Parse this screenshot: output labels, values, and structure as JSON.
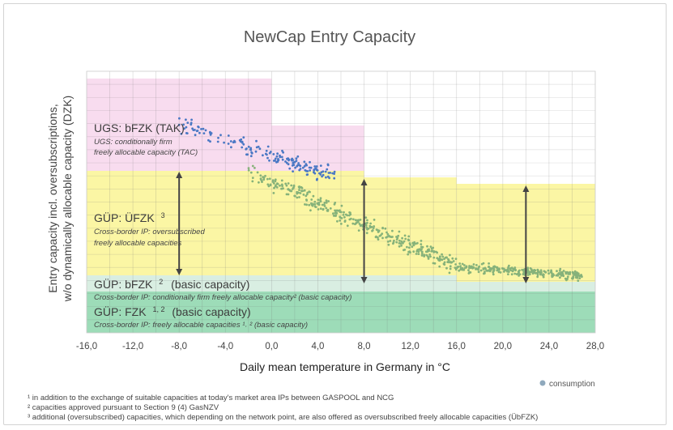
{
  "chart_data": {
    "type": "scatter",
    "title": "NewCap Entry Capacity",
    "xlabel": "Daily mean temperature in Germany in  °C",
    "ylabel_lines": [
      "Entry capacity incl. oversubscriptions,",
      "w/o dynamically allocable capacity (DZK)"
    ],
    "xlim": [
      -16,
      28
    ],
    "x_ticks": [
      "-16,0",
      "-12,0",
      "-8,0",
      "-4,0",
      "0,0",
      "4,0",
      "8,0",
      "12,0",
      "16,0",
      "20,0",
      "24,0",
      "28,0"
    ],
    "grid": true,
    "legend": {
      "position": "bottom-right",
      "entries": [
        {
          "label": "consumption",
          "color": "#8fa9bd"
        }
      ]
    },
    "zones": [
      {
        "title": "UGS: bFZK (TAK)",
        "sup": "",
        "sub_lines": [
          "UGS: conditionally firm",
          "freely allocable capacity (TAC)"
        ],
        "color": "#f8dcef"
      },
      {
        "title": "GÜP: ÜFZK",
        "sup": "3",
        "sub_lines": [
          "Cross-border IP: oversubscribed",
          "freely allocable capacities"
        ],
        "color": "#fbf6a4"
      },
      {
        "title": "GÜP: bFZK",
        "sup": "2",
        "title_suffix": "(basic capacity)",
        "sub_lines": [
          "Cross-border IP:  conditionally firm freely allocable capacity² (basic capacity)"
        ],
        "color": "#d9eee2"
      },
      {
        "title": "GÜP: FZK",
        "sup": "1, 2",
        "title_suffix": "(basic capacity)",
        "sub_lines": [
          "Cross-border IP: freely allocable capacities ¹˒ ² (basic capacity)"
        ],
        "color": "#9ddcb8"
      }
    ],
    "arrows_at_x": [
      -8,
      8,
      22
    ],
    "series": [
      {
        "color": "#4a78c4",
        "x_range": [
          -8,
          5.5
        ],
        "trend": "decreasing"
      },
      {
        "color": "#86b27a",
        "x_range": [
          -2,
          27
        ],
        "trend": "decreasing"
      }
    ]
  },
  "colors": {
    "ugs_zone": "#f8dcef",
    "ufzk_zone": "#fbf6a4",
    "bfzk_zone": "#d9eee2",
    "fzk_zone": "#9ddcb8",
    "blue_points": "#4a78c4",
    "green_points": "#86b27a",
    "arrow": "#444444"
  },
  "footnotes": [
    "¹ in addition to the exchange of suitable capacities at today's market area IPs between GASPOOL and NCG",
    "² capacities approved pursuant to Section 9 (4) GasNZV",
    "³ additional (oversubscribed) capacities, which depending on the network point, are also offered as oversubscribed freely allocable capacities (ÜbFZK)"
  ]
}
